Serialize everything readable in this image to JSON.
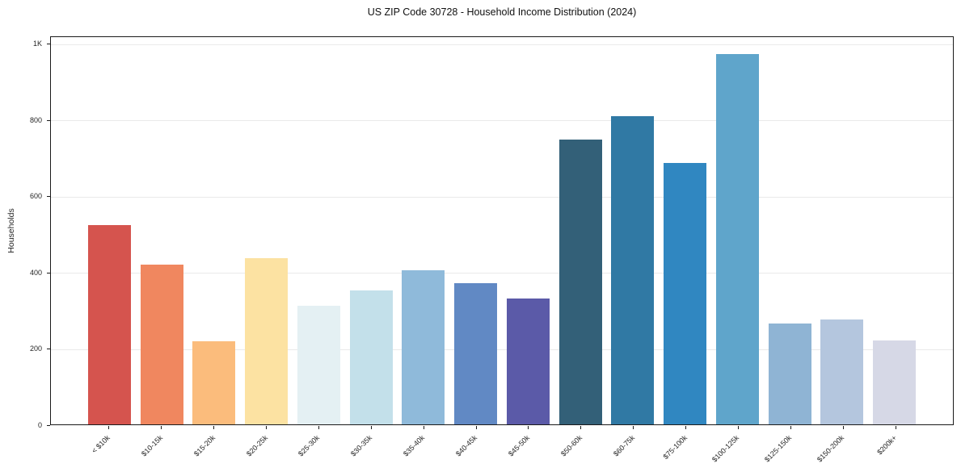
{
  "chart_data": {
    "type": "bar",
    "title": "US ZIP Code 30728 - Household Income Distribution (2024)",
    "xlabel": "",
    "ylabel": "Households",
    "categories": [
      "< $10k",
      "$10-15k",
      "$15-20k",
      "$20-25k",
      "$25-30k",
      "$30-35k",
      "$35-40k",
      "$40-45k",
      "$45-50k",
      "$50-60k",
      "$60-75k",
      "$75-100k",
      "$100-125k",
      "$125-150k",
      "$150-200k",
      "$200k+"
    ],
    "values": [
      523,
      419,
      218,
      437,
      311,
      352,
      404,
      370,
      330,
      746,
      808,
      686,
      972,
      265,
      276,
      220
    ],
    "bar_colors": [
      "#d5544e",
      "#f0875f",
      "#fbbc7c",
      "#fce2a2",
      "#e4f0f3",
      "#c3e0ea",
      "#8fbada",
      "#6189c4",
      "#5b5aa8",
      "#336078",
      "#3079a4",
      "#3087c1",
      "#5fa5cb",
      "#8fb4d4",
      "#b4c6de",
      "#d6d8e6"
    ],
    "yticks": {
      "labels": [
        "0",
        "200",
        "400",
        "600",
        "800",
        "1K"
      ],
      "values": [
        0,
        200,
        400,
        600,
        800,
        1000
      ]
    },
    "ylim": [
      0,
      1020
    ],
    "grid": "horizontal",
    "grid_color": "#eaeaea",
    "axis_color": "#1a1a1a",
    "text_color": "#262626",
    "legend": "none"
  }
}
